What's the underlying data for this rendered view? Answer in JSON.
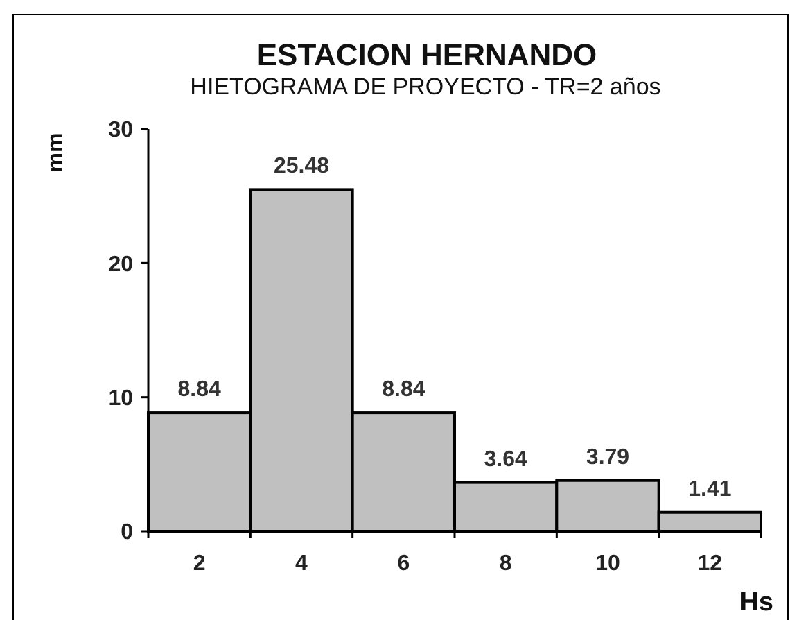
{
  "chart_data": {
    "type": "bar",
    "title": "ESTACION HERNANDO",
    "subtitle": "HIETOGRAMA DE PROYECTO - TR=2 años",
    "xlabel": "Hs",
    "ylabel": "mm",
    "categories": [
      "2",
      "4",
      "6",
      "8",
      "10",
      "12"
    ],
    "values": [
      8.84,
      25.48,
      8.84,
      3.64,
      3.79,
      1.41
    ],
    "color": "#c0c0c0",
    "ylim": [
      0,
      30
    ],
    "yticks": [
      0,
      10,
      20,
      30
    ],
    "data_labels": true
  }
}
